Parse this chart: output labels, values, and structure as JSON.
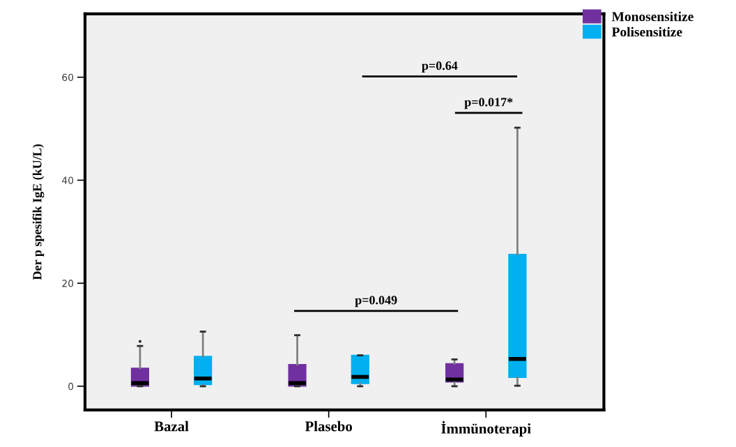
{
  "chart_data": {
    "type": "box",
    "ylabel": "Der p spesifik IgE (kU/L)",
    "categories": [
      "Bazal",
      "Plasebo",
      "İmmünoterapi"
    ],
    "ylim": [
      -4.6,
      72.3
    ],
    "yticks": [
      0,
      20,
      40,
      60
    ],
    "legend": "top right",
    "grid": false,
    "series": [
      {
        "name": "Monosensitize",
        "color": "#7030a0",
        "boxes": [
          {
            "low": 0,
            "q1": 0,
            "median": 0.6,
            "q3": 3.5,
            "high": 7.8,
            "outliers": [
              8.7
            ]
          },
          {
            "low": 0,
            "q1": 0,
            "median": 0.6,
            "q3": 4.2,
            "high": 9.9
          },
          {
            "low": 0,
            "q1": 0.8,
            "median": 1.3,
            "q3": 4.4,
            "high": 5.2
          }
        ]
      },
      {
        "name": "Polisensitize",
        "color": "#00b0f0",
        "boxes": [
          {
            "low": 0,
            "q1": 0.3,
            "median": 1.5,
            "q3": 5.8,
            "high": 10.6
          },
          {
            "low": 0,
            "q1": 0.5,
            "median": 1.8,
            "q3": 6.0,
            "high": 6.0
          },
          {
            "low": 0.1,
            "q1": 1.7,
            "median": 5.3,
            "q3": 25.6,
            "high": 50.2
          }
        ]
      }
    ],
    "annotations": [
      "p=0.049",
      "p=0.64",
      "p=0.017*"
    ]
  }
}
